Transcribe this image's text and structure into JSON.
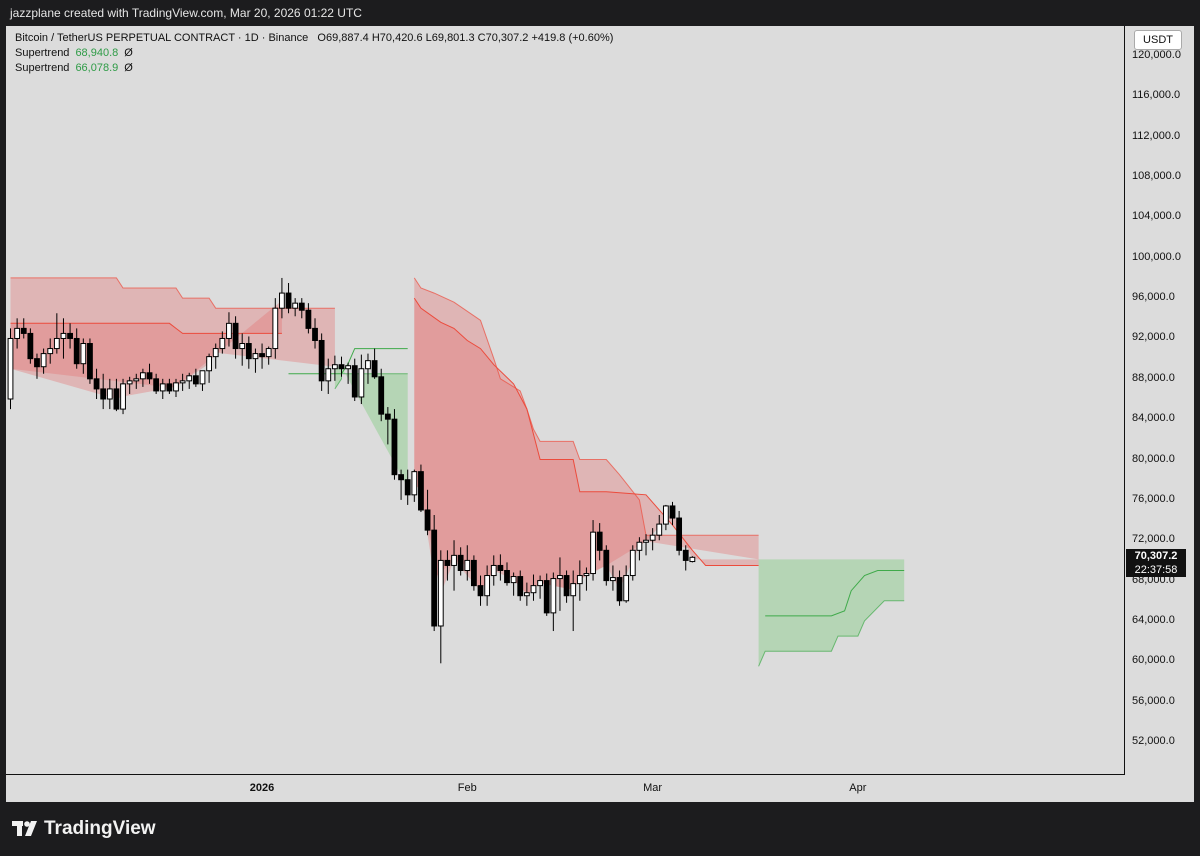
{
  "header": {
    "text": "jazzplane created with TradingView.com, Mar 20, 2026 01:22 UTC"
  },
  "legend": {
    "symbol": "Bitcoin / TetherUS PERPETUAL CONTRACT · 1D · Binance",
    "ohlc": "O69,887.4  H70,420.6  L69,801.3  C70,307.2  +419.8 (+0.60%)",
    "supertrend1_label": "Supertrend",
    "supertrend1_value": "68,940.8",
    "supertrend1_symbol": "Ø",
    "supertrend2_label": "Supertrend",
    "supertrend2_value": "66,078.9",
    "supertrend2_symbol": "Ø"
  },
  "currency_button": "USDT",
  "last_price": {
    "value": "70,307.2",
    "countdown": "22:37:58"
  },
  "footer": {
    "brand": "TradingView"
  },
  "colors": {
    "background": "#dcdcdc",
    "up_candle_fill": "#ffffff",
    "down_candle_fill": "#000000",
    "down_trend_line": "#ec4b3c",
    "up_trend_line": "#3faa4a",
    "down_fill": "rgba(230,110,110,0.35)",
    "up_fill": "rgba(110,200,110,0.35)"
  },
  "chart_data": {
    "type": "candlestick",
    "interval": "1D",
    "ylim": [
      48000,
      122000
    ],
    "y_ticks": [
      "120,000.0",
      "116,000.0",
      "112,000.0",
      "108,000.0",
      "104,000.0",
      "100,000.0",
      "96,000.0",
      "92,000.0",
      "88,000.0",
      "84,000.0",
      "80,000.0",
      "76,000.0",
      "72,000.0",
      "68,000.0",
      "64,000.0",
      "60,000.0",
      "56,000.0",
      "52,000.0"
    ],
    "y_tick_values": [
      120000,
      116000,
      112000,
      108000,
      104000,
      100000,
      96000,
      92000,
      88000,
      84000,
      80000,
      76000,
      72000,
      68000,
      64000,
      60000,
      56000,
      52000
    ],
    "x_ticks": [
      {
        "label": "2026",
        "index": 38,
        "bold": true
      },
      {
        "label": "Feb",
        "index": 69,
        "bold": false
      },
      {
        "label": "Mar",
        "index": 97,
        "bold": false
      },
      {
        "label": "Apr",
        "index": 128,
        "bold": false
      }
    ],
    "candles": [
      [
        86000,
        93000,
        85000,
        92000
      ],
      [
        92000,
        94000,
        91000,
        93000
      ],
      [
        93000,
        94000,
        92000,
        92500
      ],
      [
        92500,
        93000,
        89500,
        90000
      ],
      [
        90000,
        90500,
        88000,
        89200
      ],
      [
        89200,
        91000,
        88500,
        90500
      ],
      [
        90500,
        92000,
        89500,
        91000
      ],
      [
        91000,
        94500,
        90500,
        92000
      ],
      [
        92000,
        94000,
        90000,
        92500
      ],
      [
        92500,
        93500,
        91000,
        92000
      ],
      [
        92000,
        93000,
        89000,
        89500
      ],
      [
        89500,
        92000,
        88500,
        91500
      ],
      [
        91500,
        92000,
        87500,
        88000
      ],
      [
        88000,
        89000,
        86000,
        87000
      ],
      [
        87000,
        88500,
        85000,
        86000
      ],
      [
        86000,
        88000,
        85000,
        87000
      ],
      [
        87000,
        88000,
        84800,
        85000
      ],
      [
        85000,
        88000,
        84500,
        87500
      ],
      [
        87500,
        88200,
        86500,
        87800
      ],
      [
        87800,
        88500,
        87000,
        88000
      ],
      [
        88000,
        89000,
        87200,
        88600
      ],
      [
        88600,
        89500,
        87500,
        88000
      ],
      [
        88000,
        88500,
        86500,
        86800
      ],
      [
        86800,
        88000,
        86000,
        87500
      ],
      [
        87500,
        88000,
        86500,
        86800
      ],
      [
        86800,
        88000,
        86200,
        87600
      ],
      [
        87600,
        88500,
        86800,
        87800
      ],
      [
        87800,
        88600,
        87000,
        88300
      ],
      [
        88300,
        89000,
        87200,
        87500
      ],
      [
        87500,
        88500,
        86800,
        88800
      ],
      [
        88800,
        90500,
        87600,
        90200
      ],
      [
        90200,
        91500,
        89000,
        91000
      ],
      [
        91000,
        92700,
        90500,
        92000
      ],
      [
        92000,
        94600,
        91200,
        93500
      ],
      [
        93500,
        94200,
        90000,
        91000
      ],
      [
        91000,
        92500,
        89300,
        91500
      ],
      [
        91500,
        92200,
        89000,
        90000
      ],
      [
        90000,
        91000,
        88600,
        90500
      ],
      [
        90500,
        91500,
        89000,
        90200
      ],
      [
        90200,
        91200,
        89400,
        91000
      ],
      [
        91000,
        96000,
        90000,
        95000
      ],
      [
        95000,
        98000,
        94000,
        96500
      ],
      [
        96500,
        97500,
        94500,
        95000
      ],
      [
        95000,
        96000,
        94200,
        95500
      ],
      [
        95500,
        96000,
        94000,
        94800
      ],
      [
        94800,
        95500,
        92500,
        93000
      ],
      [
        93000,
        94000,
        91000,
        91800
      ],
      [
        91800,
        92500,
        86800,
        87800
      ],
      [
        87800,
        90000,
        86500,
        89000
      ],
      [
        89000,
        90300,
        87800,
        89400
      ],
      [
        89400,
        90200,
        88200,
        89000
      ],
      [
        89000,
        89600,
        87500,
        89300
      ],
      [
        89300,
        90000,
        85800,
        86200
      ],
      [
        86200,
        90400,
        85500,
        89000
      ],
      [
        89000,
        90500,
        87500,
        89800
      ],
      [
        89800,
        91000,
        88000,
        88200
      ],
      [
        88200,
        89000,
        83800,
        84500
      ],
      [
        84500,
        85200,
        81500,
        84000
      ],
      [
        84000,
        85000,
        78000,
        78500
      ],
      [
        78500,
        79000,
        76000,
        78000
      ],
      [
        78000,
        79000,
        75500,
        76500
      ],
      [
        76500,
        79000,
        75800,
        78800
      ],
      [
        78800,
        79500,
        74800,
        75000
      ],
      [
        75000,
        77000,
        72500,
        73000
      ],
      [
        73000,
        74500,
        63000,
        63500
      ],
      [
        63500,
        71000,
        59800,
        70000
      ],
      [
        70000,
        71000,
        68000,
        69500
      ],
      [
        69500,
        72000,
        67000,
        70500
      ],
      [
        70500,
        71300,
        68500,
        69000
      ],
      [
        69000,
        71500,
        68000,
        70000
      ],
      [
        70000,
        70500,
        67000,
        67500
      ],
      [
        67500,
        68500,
        65500,
        66500
      ],
      [
        66500,
        69500,
        65500,
        68500
      ],
      [
        68500,
        70500,
        67500,
        69500
      ],
      [
        69500,
        70600,
        68000,
        69000
      ],
      [
        69000,
        69800,
        67500,
        67800
      ],
      [
        67800,
        68800,
        66500,
        68400
      ],
      [
        68400,
        69000,
        66000,
        66500
      ],
      [
        66500,
        67800,
        65500,
        66800
      ],
      [
        66800,
        68600,
        66000,
        67500
      ],
      [
        67500,
        68500,
        66200,
        68000
      ],
      [
        68000,
        68700,
        64500,
        64800
      ],
      [
        64800,
        68800,
        63000,
        68200
      ],
      [
        68200,
        70300,
        65000,
        68500
      ],
      [
        68500,
        69000,
        65800,
        66500
      ],
      [
        66500,
        69000,
        63000,
        67700
      ],
      [
        67700,
        70000,
        66000,
        68500
      ],
      [
        68500,
        69300,
        67000,
        68700
      ],
      [
        68700,
        74000,
        68000,
        72800
      ],
      [
        72800,
        73700,
        70000,
        71000
      ],
      [
        71000,
        71500,
        67500,
        68000
      ],
      [
        68000,
        69500,
        67000,
        68300
      ],
      [
        68300,
        69000,
        65500,
        66000
      ],
      [
        66000,
        69500,
        65800,
        68500
      ],
      [
        68500,
        71500,
        68000,
        71000
      ],
      [
        71000,
        72300,
        70000,
        71800
      ],
      [
        71800,
        72600,
        70500,
        72000
      ],
      [
        72000,
        73200,
        71000,
        72500
      ],
      [
        72500,
        74500,
        72000,
        73600
      ],
      [
        73600,
        75500,
        73000,
        75400
      ],
      [
        75400,
        75800,
        73500,
        74200
      ],
      [
        74200,
        74900,
        70500,
        71000
      ],
      [
        71000,
        71500,
        69000,
        70000
      ],
      [
        69887.4,
        70420.6,
        69801.3,
        70307.2
      ]
    ],
    "supertrend_outer": {
      "down": [
        [
          0,
          98000
        ],
        [
          16,
          98000
        ],
        [
          17,
          97000
        ],
        [
          25,
          97000
        ],
        [
          26,
          96000
        ],
        [
          30,
          96000
        ],
        [
          31,
          95000
        ],
        [
          49,
          95000
        ]
      ],
      "up": [
        [
          49,
          87000
        ],
        [
          50,
          88000
        ],
        [
          50,
          88500
        ],
        [
          60,
          88500
        ]
      ],
      "down2": [
        [
          61,
          98000
        ],
        [
          62,
          97000
        ],
        [
          64,
          96500
        ],
        [
          67,
          95600
        ],
        [
          71,
          93800
        ],
        [
          73,
          90000
        ],
        [
          74,
          88000
        ],
        [
          77,
          86800
        ],
        [
          78,
          85000
        ],
        [
          79,
          83000
        ],
        [
          80,
          81800
        ],
        [
          85,
          81800
        ],
        [
          86,
          80000
        ],
        [
          90,
          80000
        ],
        [
          92,
          78500
        ],
        [
          95,
          76000
        ],
        [
          96,
          72500
        ],
        [
          113,
          72500
        ]
      ],
      "up2": [
        [
          113,
          59500
        ],
        [
          114,
          61000
        ],
        [
          118,
          61000
        ],
        [
          124,
          61000
        ],
        [
          125,
          62500
        ],
        [
          128,
          62500
        ],
        [
          129,
          64000
        ],
        [
          132,
          66000
        ],
        [
          135,
          66000
        ]
      ]
    },
    "supertrend_inner": {
      "down": [
        [
          0,
          93500
        ],
        [
          24,
          93500
        ],
        [
          25,
          93000
        ],
        [
          26,
          92500
        ],
        [
          41,
          92500
        ]
      ],
      "up": [
        [
          42,
          88500
        ],
        [
          50,
          88500
        ],
        [
          51,
          89500
        ],
        [
          52,
          91000
        ],
        [
          60,
          91000
        ]
      ],
      "down2": [
        [
          61,
          96000
        ],
        [
          62,
          95000
        ],
        [
          65,
          93600
        ],
        [
          67,
          93000
        ],
        [
          69,
          91800
        ],
        [
          71,
          91000
        ],
        [
          73,
          89400
        ],
        [
          76,
          87500
        ],
        [
          78,
          85000
        ],
        [
          80,
          80000
        ],
        [
          85,
          80000
        ],
        [
          86,
          76800
        ],
        [
          87,
          76800
        ],
        [
          90,
          76800
        ],
        [
          96,
          76500
        ],
        [
          100,
          73500
        ],
        [
          103,
          71000
        ],
        [
          105,
          69500
        ],
        [
          113,
          69500
        ]
      ],
      "up2": [
        [
          114,
          64500
        ],
        [
          120,
          64500
        ],
        [
          124,
          64500
        ],
        [
          126,
          65000
        ],
        [
          127,
          67000
        ],
        [
          129,
          68500
        ],
        [
          131,
          69000
        ],
        [
          135,
          69000
        ]
      ]
    }
  }
}
